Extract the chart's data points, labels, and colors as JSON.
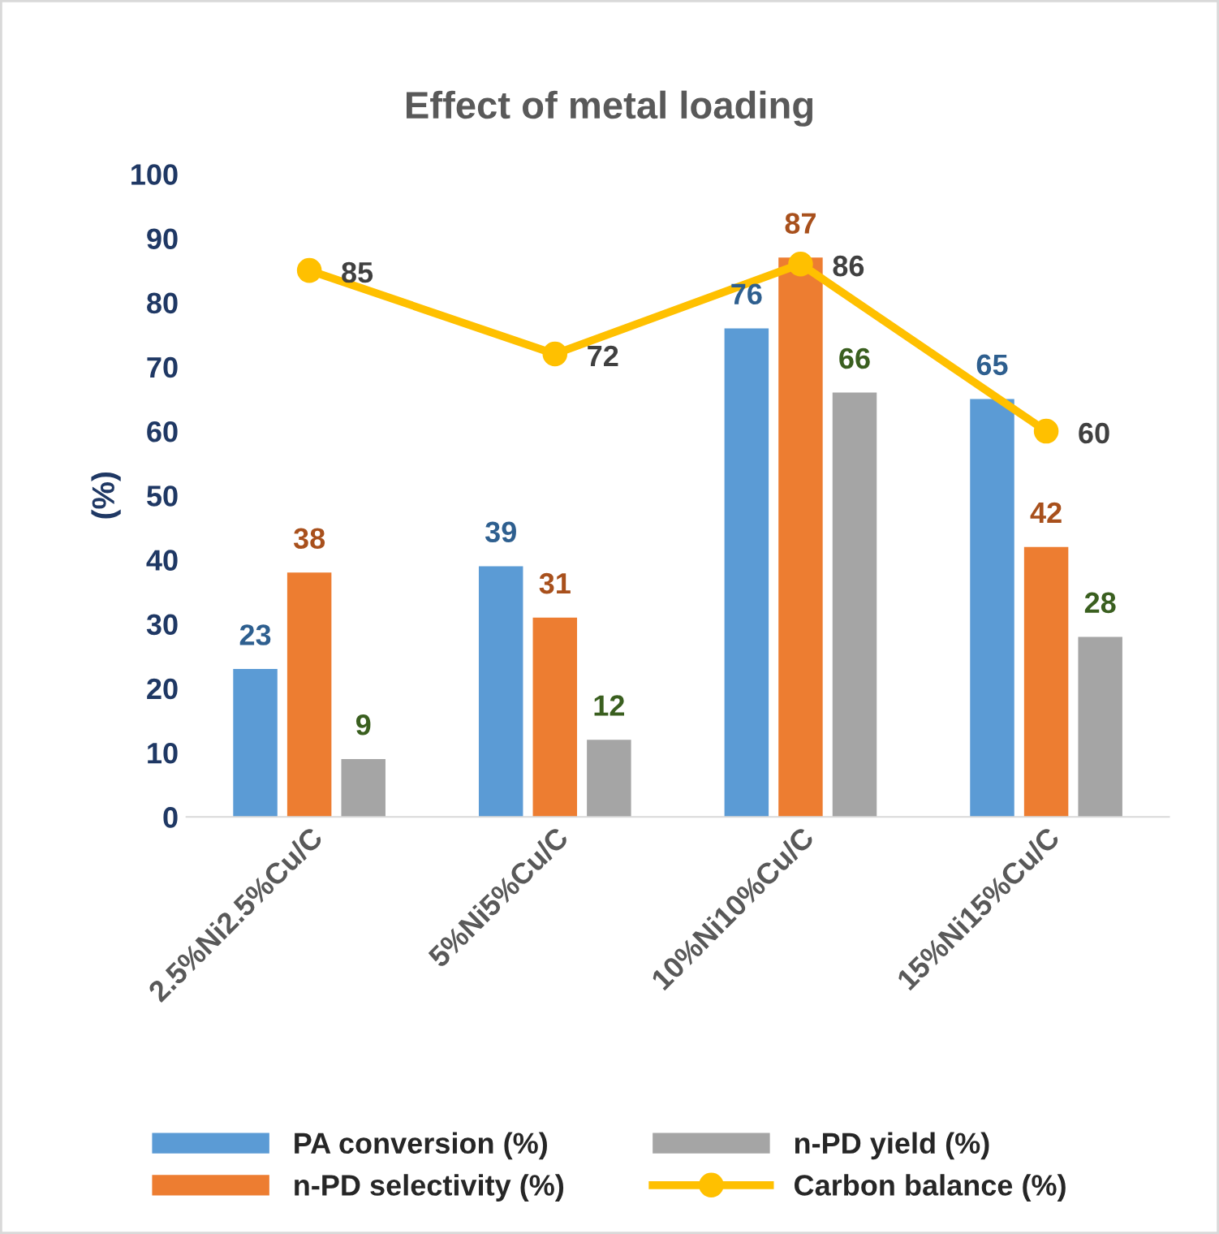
{
  "chart_data": {
    "type": "bar",
    "title": "Effect of metal loading",
    "ylabel": "(%)",
    "categories": [
      "2.5%Ni2.5%Cu/C",
      "5%Ni5%Cu/C",
      "10%Ni10%Cu/C",
      "15%Ni15%Cu/C"
    ],
    "series": [
      {
        "name": "PA conversion (%)",
        "color": "#5b9bd5",
        "values": [
          23,
          39,
          76,
          65
        ]
      },
      {
        "name": "n-PD selectivity (%)",
        "color": "#ed7d31",
        "values": [
          38,
          31,
          87,
          42
        ]
      },
      {
        "name": "n-PD yield (%)",
        "color": "#a5a5a5",
        "values": [
          9,
          12,
          66,
          28
        ]
      },
      {
        "name": "Carbon balance (%)",
        "color": "#ffc000",
        "type": "line",
        "marker": "circle",
        "values": [
          85,
          72,
          86,
          60
        ]
      }
    ],
    "ylim": [
      0,
      100
    ],
    "yticks": [
      0,
      10,
      20,
      30,
      40,
      50,
      60,
      70,
      80,
      90,
      100
    ],
    "data_labels": true,
    "grid": false,
    "legend": "bottom"
  }
}
